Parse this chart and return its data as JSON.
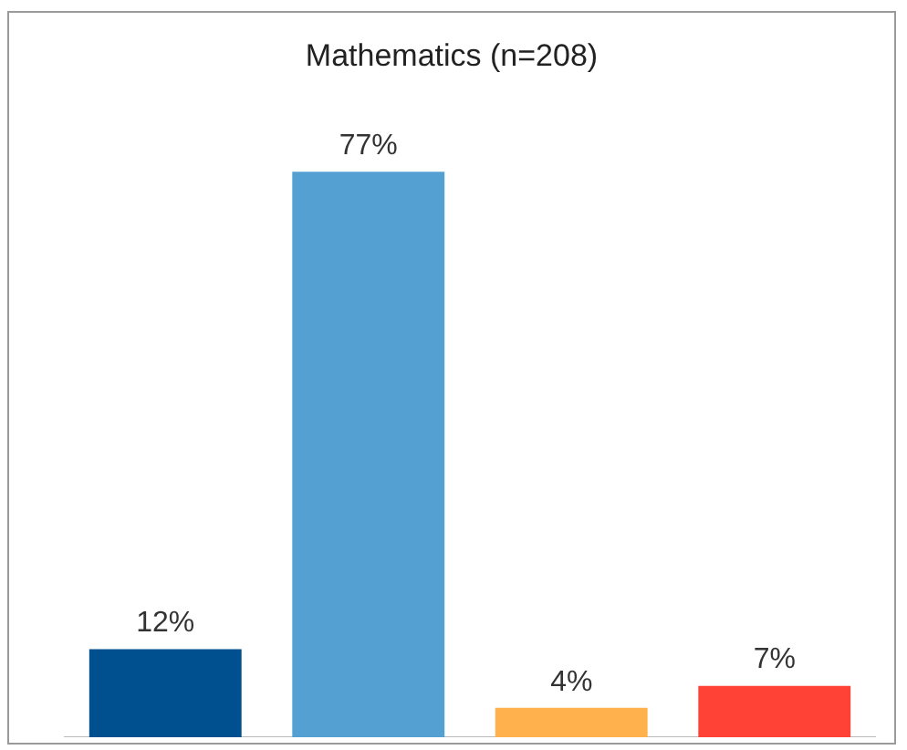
{
  "chart_data": {
    "type": "bar",
    "title": "Mathematics (n=208)",
    "categories": [
      null,
      null,
      null,
      null
    ],
    "values": [
      12,
      77,
      4,
      7
    ],
    "colors": [
      "#004f8f",
      "#55a0d3",
      "#ffb14e",
      "#ff4136"
    ],
    "value_labels": [
      "12%",
      "77%",
      "4%",
      "7%"
    ]
  }
}
